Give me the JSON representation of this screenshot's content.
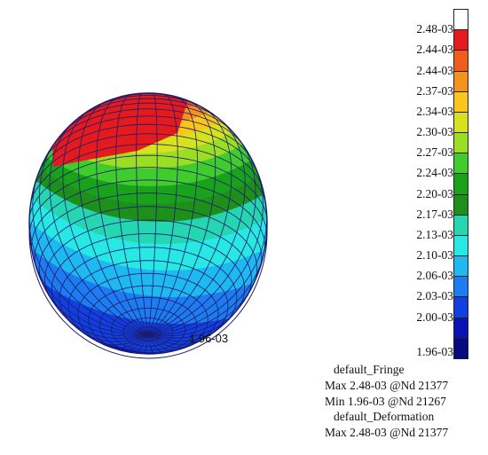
{
  "legend": {
    "labels": [
      "2.48-03",
      "2.44-03",
      "2.44-03",
      "2.37-03",
      "2.34-03",
      "2.30-03",
      "2.27-03",
      "2.24-03",
      "2.20-03",
      "2.17-03",
      "2.13-03",
      "2.10-03",
      "2.06-03",
      "2.03-03",
      "2.00-03",
      "1.96-03"
    ],
    "colors": [
      "#ffffff",
      "#e41a1c",
      "#f25c1a",
      "#f5921c",
      "#f8c61d",
      "#d7e21c",
      "#9bde24",
      "#3fcc2c",
      "#1aa31a",
      "#1f8f1c",
      "#25d6b0",
      "#27e8e3",
      "#1fb9f2",
      "#1d7cf0",
      "#123fe0",
      "#0a14b5",
      "#050a80"
    ]
  },
  "mesh_label": "1.96-03",
  "info": {
    "fringe_title": "default_Fringe",
    "fringe_max": "Max 2.48-03 @Nd 21377",
    "fringe_min": "Min 1.96-03 @Nd 21267",
    "deformation_title": "default_Deformation",
    "deformation_max": "Max 2.48-03 @Nd 21377"
  }
}
